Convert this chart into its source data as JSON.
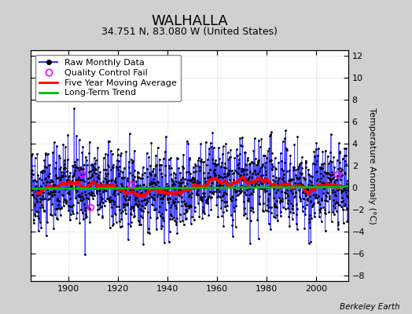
{
  "title": "WALHALLA",
  "subtitle": "34.751 N, 83.080 W (United States)",
  "ylabel": "Temperature Anomaly (°C)",
  "credit": "Berkeley Earth",
  "xlim": [
    1885,
    2013
  ],
  "ylim": [
    -8.5,
    12.5
  ],
  "yticks": [
    -8,
    -6,
    -4,
    -2,
    0,
    2,
    4,
    6,
    8,
    10,
    12
  ],
  "xticks": [
    1900,
    1920,
    1940,
    1960,
    1980,
    2000
  ],
  "year_start": 1885,
  "year_end": 2012,
  "seed": 42,
  "raw_color": "#3333FF",
  "raw_dot_color": "#000000",
  "qc_color": "#FF00FF",
  "moving_avg_color": "#FF0000",
  "trend_color": "#00BB00",
  "background_color": "#FFFFFF",
  "outer_background": "#D0D0D0",
  "grid_color": "#BBBBBB",
  "title_fontsize": 13,
  "subtitle_fontsize": 9,
  "ylabel_fontsize": 8,
  "legend_fontsize": 8,
  "tick_fontsize": 8,
  "qc_fail_years": [
    1905.5,
    1909.0,
    1925.5,
    2008.5
  ],
  "qc_fail_values": [
    1.3,
    -1.8,
    0.3,
    1.2
  ]
}
